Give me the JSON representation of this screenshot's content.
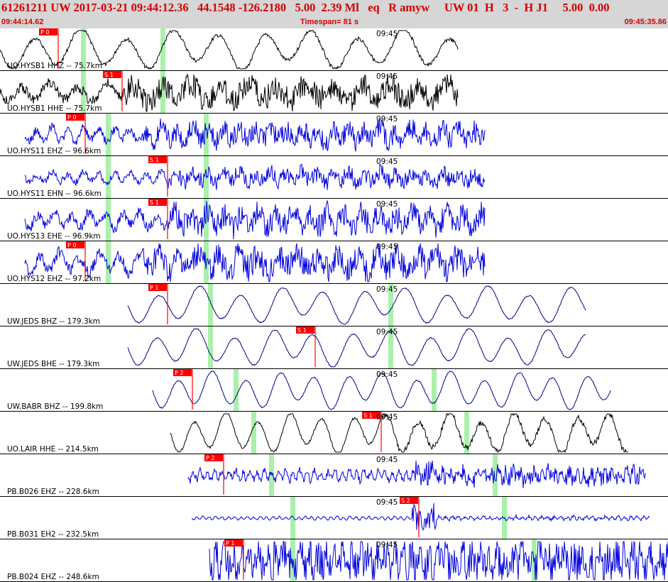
{
  "header": {
    "title": "61261211 UW 2017-03-21 09:44:12.36   44.1548 -126.2180   5.00  2.39 Ml   eq   R amyw     UW 01  H   3  -  H J1     5.00  0.00",
    "start_time": "09:44:14.62",
    "timespan": "Timespan=  81 s",
    "end_time": "09:45:35.86"
  },
  "time_marker": "09:45",
  "colors": {
    "header_bg": "#d6d6d6",
    "header_text": "#d60000",
    "trace_black": "#000000",
    "trace_blue": "#0000dd",
    "pick": "#ff0000",
    "marker": "#aaf0aa"
  },
  "traces": [
    {
      "label": "UO.HYSB1 HHZ -- 75.7km",
      "color": "black",
      "pick": "P 0"
    },
    {
      "label": "UO.HYSB1 HHE -- 75.7km",
      "color": "black",
      "pick": "S 1"
    },
    {
      "label": "UO.HYS11 EHZ -- 96.6km",
      "color": "blue",
      "pick": "P 0"
    },
    {
      "label": "UO.HYS11 EHN -- 96.6km",
      "color": "blue",
      "pick": "S 1"
    },
    {
      "label": "UO.HYS13 EHE -- 96.9km",
      "color": "blue",
      "pick": "S 1"
    },
    {
      "label": "UO.HYS12 EHZ -- 97.2km",
      "color": "blue",
      "pick": "P 0"
    },
    {
      "label": "UW.JEDS BHZ -- 179.3km",
      "color": "navy",
      "pick": "P 1"
    },
    {
      "label": "UW.JEDS BHE -- 179.3km",
      "color": "navy",
      "pick": "S 1"
    },
    {
      "label": "UW.BABR BHZ -- 199.8km",
      "color": "navy",
      "pick": "P 2"
    },
    {
      "label": "UO.LAIR HHE -- 214.5km",
      "color": "black",
      "pick": "S 1"
    },
    {
      "label": "PB.B026 EHZ -- 228.6km",
      "color": "blue",
      "pick": "P 2"
    },
    {
      "label": "PB.B031 EH2 -- 232.5km",
      "color": "blue",
      "pick": "S 2"
    },
    {
      "label": "PB.B024 EHZ -- 248.6km",
      "color": "blue",
      "pick": "P 1"
    }
  ]
}
